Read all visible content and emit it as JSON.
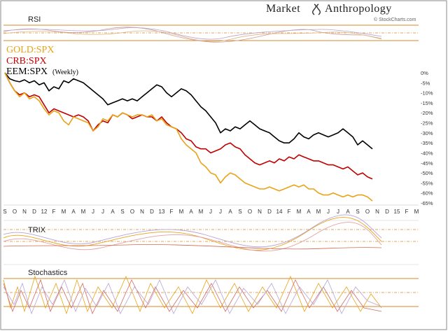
{
  "brand": {
    "title_left": "Market",
    "title_right": "Anthropology",
    "subtitle": "© StockCharts.com"
  },
  "panels": {
    "rsi": "RSI",
    "trix": "TRIX",
    "stochastics": "Stochastics"
  },
  "legend": {
    "gold": "GOLD:SPX",
    "crb": "CRB:SPX",
    "eem": "EEM:SPX",
    "eem_suffix": "(Weekly)"
  },
  "colors": {
    "gold": "#e8a317",
    "crb": "#c00000",
    "eem": "#000000",
    "panel_line": "#d88a2a"
  },
  "chart_data": {
    "type": "line",
    "y_unit": "percent",
    "ylim": [
      -65,
      0
    ],
    "y_ticks": [
      "0%",
      "-5%",
      "-10%",
      "-15%",
      "-20%",
      "-25%",
      "-30%",
      "-35%",
      "-40%",
      "-45%",
      "-50%",
      "-55%",
      "-60%",
      "-65%"
    ],
    "x_ticks": [
      "S",
      "O",
      "N",
      "D",
      "12",
      "F",
      "M",
      "A",
      "M",
      "J",
      "J",
      "A",
      "S",
      "O",
      "N",
      "D",
      "13",
      "F",
      "M",
      "A",
      "M",
      "J",
      "J",
      "A",
      "S",
      "O",
      "N",
      "D",
      "14",
      "F",
      "M",
      "A",
      "M",
      "J",
      "J",
      "A",
      "S",
      "O",
      "N",
      "D",
      "15",
      "F",
      "M"
    ],
    "x_range": [
      0,
      42
    ],
    "series": [
      {
        "name": "EEM:SPX",
        "points": [
          [
            0,
            0
          ],
          [
            0.5,
            -3
          ],
          [
            1,
            -4
          ],
          [
            1.5,
            -4.5
          ],
          [
            2,
            -3.5
          ],
          [
            2.5,
            -5
          ],
          [
            3,
            -4
          ],
          [
            3.5,
            -6
          ],
          [
            4,
            -5
          ],
          [
            4.5,
            -9
          ],
          [
            5,
            -7
          ],
          [
            5.5,
            -8
          ],
          [
            6,
            -4
          ],
          [
            6.5,
            -5
          ],
          [
            7,
            -3
          ],
          [
            7.5,
            -4
          ],
          [
            8,
            -5
          ],
          [
            8.5,
            -7
          ],
          [
            9,
            -9
          ],
          [
            9.5,
            -11
          ],
          [
            10,
            -13
          ],
          [
            10.5,
            -16
          ],
          [
            11,
            -15
          ],
          [
            11.5,
            -14
          ],
          [
            12,
            -13
          ],
          [
            12.5,
            -14
          ],
          [
            13,
            -13
          ],
          [
            13.5,
            -14
          ],
          [
            14,
            -12
          ],
          [
            14.5,
            -10
          ],
          [
            15,
            -8
          ],
          [
            15.5,
            -6
          ],
          [
            16,
            -7
          ],
          [
            16.5,
            -10
          ],
          [
            17,
            -12
          ],
          [
            17.5,
            -10
          ],
          [
            18,
            -8
          ],
          [
            18.5,
            -9
          ],
          [
            19,
            -11
          ],
          [
            19.5,
            -14
          ],
          [
            20,
            -17
          ],
          [
            20.5,
            -19
          ],
          [
            21,
            -22
          ],
          [
            21.5,
            -25
          ],
          [
            22,
            -30
          ],
          [
            22.5,
            -28
          ],
          [
            23,
            -29
          ],
          [
            23.5,
            -27
          ],
          [
            24,
            -28
          ],
          [
            24.5,
            -26
          ],
          [
            25,
            -24
          ],
          [
            25.5,
            -26
          ],
          [
            26,
            -28
          ],
          [
            26.5,
            -29
          ],
          [
            27,
            -30
          ],
          [
            27.5,
            -32
          ],
          [
            28,
            -34
          ],
          [
            28.5,
            -35
          ],
          [
            29,
            -35
          ],
          [
            29.5,
            -33
          ],
          [
            30,
            -30
          ],
          [
            30.5,
            -32
          ],
          [
            31,
            -33
          ],
          [
            31.5,
            -31
          ],
          [
            32,
            -30
          ],
          [
            32.5,
            -31
          ],
          [
            33,
            -32
          ],
          [
            33.5,
            -31
          ],
          [
            34,
            -30
          ],
          [
            34.5,
            -28
          ],
          [
            35,
            -30
          ],
          [
            35.5,
            -32
          ],
          [
            36,
            -36
          ],
          [
            36.5,
            -34
          ],
          [
            37,
            -36
          ],
          [
            37.5,
            -38
          ]
        ]
      },
      {
        "name": "CRB:SPX",
        "points": [
          [
            0,
            0
          ],
          [
            0.5,
            -5
          ],
          [
            1,
            -9
          ],
          [
            1.5,
            -11
          ],
          [
            2,
            -10
          ],
          [
            2.5,
            -12
          ],
          [
            3,
            -11
          ],
          [
            3.5,
            -12
          ],
          [
            4,
            -16
          ],
          [
            4.5,
            -20
          ],
          [
            5,
            -18
          ],
          [
            5.5,
            -19
          ],
          [
            6,
            -20
          ],
          [
            6.5,
            -21
          ],
          [
            7,
            -22
          ],
          [
            7.5,
            -21
          ],
          [
            8,
            -22
          ],
          [
            8.5,
            -24
          ],
          [
            9,
            -29
          ],
          [
            9.5,
            -26
          ],
          [
            10,
            -24
          ],
          [
            10.5,
            -25
          ],
          [
            11,
            -21
          ],
          [
            11.5,
            -22
          ],
          [
            12,
            -20
          ],
          [
            12.5,
            -21
          ],
          [
            13,
            -23
          ],
          [
            13.5,
            -22
          ],
          [
            14,
            -21
          ],
          [
            14.5,
            -22
          ],
          [
            15,
            -22
          ],
          [
            15.5,
            -24
          ],
          [
            16,
            -22
          ],
          [
            16.5,
            -25
          ],
          [
            17,
            -27
          ],
          [
            17.5,
            -28
          ],
          [
            18,
            -30
          ],
          [
            18.5,
            -33
          ],
          [
            19,
            -34
          ],
          [
            19.5,
            -37
          ],
          [
            20,
            -38
          ],
          [
            20.5,
            -38
          ],
          [
            21,
            -40
          ],
          [
            21.5,
            -39
          ],
          [
            22,
            -38
          ],
          [
            22.5,
            -36
          ],
          [
            23,
            -35
          ],
          [
            23.5,
            -37
          ],
          [
            24,
            -38
          ],
          [
            24.5,
            -41
          ],
          [
            25,
            -43
          ],
          [
            25.5,
            -45
          ],
          [
            26,
            -46
          ],
          [
            26.5,
            -45
          ],
          [
            27,
            -44
          ],
          [
            27.5,
            -45
          ],
          [
            28,
            -43
          ],
          [
            28.5,
            -44
          ],
          [
            29,
            -42
          ],
          [
            29.5,
            -43
          ],
          [
            30,
            -41
          ],
          [
            30.5,
            -42
          ],
          [
            31,
            -43
          ],
          [
            31.5,
            -44
          ],
          [
            32,
            -44
          ],
          [
            32.5,
            -45
          ],
          [
            33,
            -46
          ],
          [
            33.5,
            -46
          ],
          [
            34,
            -47
          ],
          [
            34.5,
            -48
          ],
          [
            35,
            -47
          ],
          [
            35.5,
            -49
          ],
          [
            36,
            -51
          ],
          [
            36.5,
            -50
          ],
          [
            37,
            -52
          ],
          [
            37.5,
            -53
          ]
        ]
      },
      {
        "name": "GOLD:SPX",
        "points": [
          [
            0,
            0
          ],
          [
            0.5,
            -5
          ],
          [
            1,
            -9
          ],
          [
            1.5,
            -12
          ],
          [
            2,
            -10
          ],
          [
            2.5,
            -13
          ],
          [
            3,
            -12
          ],
          [
            3.5,
            -14
          ],
          [
            4,
            -18
          ],
          [
            4.5,
            -21
          ],
          [
            5,
            -19
          ],
          [
            5.5,
            -20
          ],
          [
            6,
            -24
          ],
          [
            6.5,
            -26
          ],
          [
            7,
            -22
          ],
          [
            7.5,
            -23
          ],
          [
            8,
            -24
          ],
          [
            8.5,
            -25
          ],
          [
            9,
            -29
          ],
          [
            9.5,
            -27
          ],
          [
            10,
            -23
          ],
          [
            10.5,
            -24
          ],
          [
            11,
            -21
          ],
          [
            11.5,
            -22
          ],
          [
            12,
            -20
          ],
          [
            12.5,
            -21
          ],
          [
            13,
            -22
          ],
          [
            13.5,
            -21
          ],
          [
            14,
            -21
          ],
          [
            14.5,
            -22
          ],
          [
            15,
            -21
          ],
          [
            15.5,
            -24
          ],
          [
            16,
            -23
          ],
          [
            16.5,
            -26
          ],
          [
            17,
            -27
          ],
          [
            17.5,
            -28
          ],
          [
            18,
            -33
          ],
          [
            18.5,
            -36
          ],
          [
            19,
            -38
          ],
          [
            19.5,
            -40
          ],
          [
            20,
            -45
          ],
          [
            20.5,
            -47
          ],
          [
            21,
            -50
          ],
          [
            21.5,
            -51
          ],
          [
            22,
            -55
          ],
          [
            22.5,
            -52
          ],
          [
            23,
            -50
          ],
          [
            23.5,
            -51
          ],
          [
            24,
            -53
          ],
          [
            24.5,
            -55
          ],
          [
            25,
            -56
          ],
          [
            25.5,
            -57
          ],
          [
            26,
            -58
          ],
          [
            26.5,
            -58
          ],
          [
            27,
            -57
          ],
          [
            27.5,
            -58
          ],
          [
            28,
            -59
          ],
          [
            28.5,
            -58
          ],
          [
            29,
            -57
          ],
          [
            29.5,
            -56
          ],
          [
            30,
            -57
          ],
          [
            30.5,
            -56
          ],
          [
            31,
            -58
          ],
          [
            31.5,
            -58
          ],
          [
            32,
            -60
          ],
          [
            32.5,
            -61
          ],
          [
            33,
            -61
          ],
          [
            33.5,
            -60
          ],
          [
            34,
            -61
          ],
          [
            34.5,
            -62
          ],
          [
            35,
            -61
          ],
          [
            35.5,
            -62
          ],
          [
            36,
            -61
          ],
          [
            36.5,
            -61
          ],
          [
            37,
            -62
          ],
          [
            37.5,
            -64
          ]
        ]
      }
    ]
  }
}
